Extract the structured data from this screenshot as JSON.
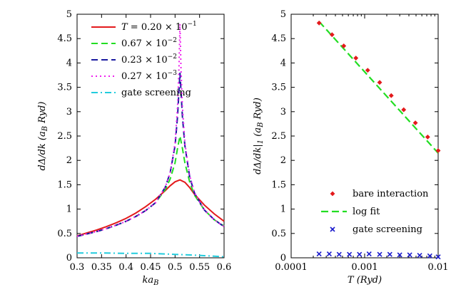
{
  "chart_data": [
    {
      "type": "line",
      "xlabel": "ka_B",
      "ylabel": "dΔ/dk (a_B Ryd)",
      "xlim": [
        0.3,
        0.6
      ],
      "ylim": [
        0,
        5
      ],
      "xticks": [
        "0.3",
        "0.35",
        "0.4",
        "0.45",
        "0.5",
        "0.55",
        "0.6"
      ],
      "yticks": [
        "0",
        "0.5",
        "1",
        "1.5",
        "2",
        "2.5",
        "3",
        "3.5",
        "4",
        "4.5",
        "5"
      ],
      "legend_position": "top-right",
      "series": [
        {
          "name": "T = 0.20 × 10^-1",
          "legend": "T = 0.20 × 10−1",
          "color": "#e31a1c",
          "dash": "solid",
          "x": [
            0.3,
            0.32,
            0.34,
            0.36,
            0.38,
            0.4,
            0.42,
            0.44,
            0.46,
            0.48,
            0.49,
            0.5,
            0.51,
            0.52,
            0.53,
            0.54,
            0.56,
            0.58,
            0.6
          ],
          "y": [
            0.45,
            0.51,
            0.57,
            0.64,
            0.72,
            0.81,
            0.92,
            1.05,
            1.2,
            1.38,
            1.48,
            1.56,
            1.6,
            1.55,
            1.44,
            1.3,
            1.08,
            0.9,
            0.75
          ]
        },
        {
          "name": "0.67 × 10^-2",
          "legend": "0.67 × 10−2",
          "color": "#22dd22",
          "dash": "dashed",
          "x": [
            0.3,
            0.32,
            0.34,
            0.36,
            0.38,
            0.4,
            0.42,
            0.44,
            0.46,
            0.48,
            0.49,
            0.5,
            0.505,
            0.51,
            0.515,
            0.52,
            0.53,
            0.54,
            0.56,
            0.58,
            0.6
          ],
          "y": [
            0.44,
            0.49,
            0.54,
            0.6,
            0.67,
            0.75,
            0.85,
            0.97,
            1.13,
            1.4,
            1.62,
            1.95,
            2.25,
            2.5,
            2.25,
            1.95,
            1.55,
            1.28,
            0.98,
            0.78,
            0.65
          ]
        },
        {
          "name": "0.23 × 10^-2",
          "legend": "0.23 × 10−2",
          "color": "#1a1aa0",
          "dash": "dashed",
          "x": [
            0.3,
            0.32,
            0.34,
            0.36,
            0.38,
            0.4,
            0.42,
            0.44,
            0.46,
            0.48,
            0.49,
            0.5,
            0.505,
            0.51,
            0.515,
            0.52,
            0.53,
            0.54,
            0.56,
            0.58,
            0.6
          ],
          "y": [
            0.44,
            0.49,
            0.54,
            0.6,
            0.67,
            0.75,
            0.85,
            0.97,
            1.13,
            1.45,
            1.75,
            2.3,
            2.9,
            3.8,
            2.9,
            2.3,
            1.65,
            1.32,
            0.98,
            0.78,
            0.64
          ]
        },
        {
          "name": "0.27 × 10^-3",
          "legend": "0.27 × 10−3",
          "color": "#ee22ee",
          "dash": "dotted",
          "x": [
            0.3,
            0.32,
            0.34,
            0.36,
            0.38,
            0.4,
            0.42,
            0.44,
            0.46,
            0.48,
            0.49,
            0.5,
            0.505,
            0.508,
            0.51,
            0.512,
            0.515,
            0.52,
            0.53,
            0.54,
            0.56,
            0.58,
            0.6
          ],
          "y": [
            0.44,
            0.49,
            0.54,
            0.6,
            0.67,
            0.75,
            0.85,
            0.97,
            1.13,
            1.45,
            1.75,
            2.35,
            3.1,
            3.9,
            4.8,
            3.9,
            3.1,
            2.35,
            1.68,
            1.33,
            0.98,
            0.78,
            0.64
          ]
        },
        {
          "name": "gate screening",
          "legend": "gate screening",
          "color": "#22ccdd",
          "dash": "dashdot",
          "x": [
            0.3,
            0.35,
            0.4,
            0.45,
            0.5,
            0.55,
            0.6
          ],
          "y": [
            0.1,
            0.1,
            0.09,
            0.09,
            0.07,
            0.05,
            0.02
          ]
        }
      ]
    },
    {
      "type": "scatter",
      "xlabel": "T (Ryd)",
      "ylabel": "dΔ/dk|1 (a_B Ryd)",
      "xscale": "log",
      "xlim": [
        0.0001,
        0.01
      ],
      "ylim": [
        0,
        5
      ],
      "xticks": [
        "0.0001",
        "0.001",
        "0.01"
      ],
      "yticks": [
        "0",
        "0.5",
        "1",
        "1.5",
        "2",
        "2.5",
        "3",
        "3.5",
        "4",
        "4.5",
        "5"
      ],
      "legend_position": "bottom-right",
      "series": [
        {
          "name": "bare interaction",
          "color": "#e31a1c",
          "marker": "diamond",
          "x": [
            0.00024,
            0.00036,
            0.00052,
            0.00076,
            0.0011,
            0.0016,
            0.0023,
            0.0034,
            0.0049,
            0.0072,
            0.01
          ],
          "y": [
            4.82,
            4.58,
            4.35,
            4.1,
            3.85,
            3.6,
            3.33,
            3.04,
            2.77,
            2.48,
            2.2
          ]
        },
        {
          "name": "log fit",
          "color": "#22dd22",
          "dash": "dashed",
          "x": [
            0.00024,
            0.01
          ],
          "y": [
            4.85,
            2.15
          ]
        },
        {
          "name": "gate screening",
          "color": "#1a1acc",
          "marker": "x",
          "x": [
            0.00024,
            0.00033,
            0.00045,
            0.00062,
            0.00085,
            0.00115,
            0.0016,
            0.0022,
            0.003,
            0.0041,
            0.0056,
            0.0077,
            0.01
          ],
          "y": [
            0.08,
            0.08,
            0.07,
            0.07,
            0.07,
            0.08,
            0.07,
            0.07,
            0.06,
            0.06,
            0.05,
            0.04,
            0.02
          ]
        }
      ]
    }
  ]
}
